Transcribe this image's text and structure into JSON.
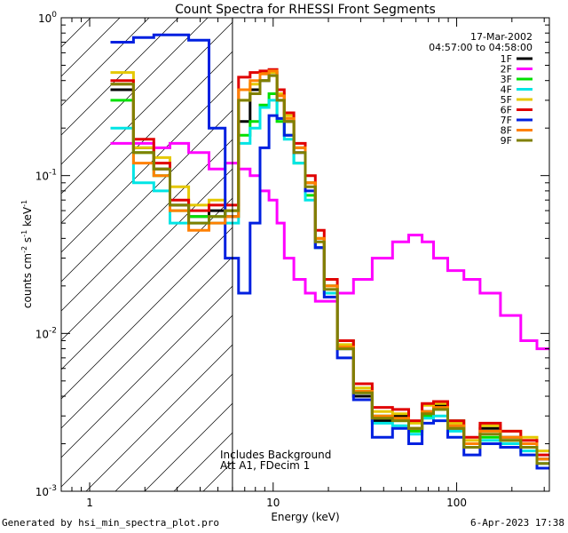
{
  "chart_data": {
    "type": "line",
    "title": "Count Spectra for RHESSI Front Segments",
    "xlabel": "Energy (keV)",
    "ylabel_main": "counts cm",
    "ylabel_parts": [
      "-2",
      " s",
      "-1",
      " keV",
      "-1"
    ],
    "xscale": "log",
    "yscale": "log",
    "xlim": [
      0.7,
      320
    ],
    "ylim": [
      0.001,
      1
    ],
    "x_ticks": [
      {
        "value": 1,
        "label": "1"
      },
      {
        "value": 10,
        "label": "10"
      },
      {
        "value": 100,
        "label": "100"
      }
    ],
    "y_ticks": [
      {
        "value": 0.001,
        "base": "10",
        "exp": "-3"
      },
      {
        "value": 0.01,
        "base": "10",
        "exp": "-2"
      },
      {
        "value": 0.1,
        "base": "10",
        "exp": "-1"
      },
      {
        "value": 1,
        "base": "10",
        "exp": "0"
      }
    ],
    "date": "17-Mar-2002",
    "time_range": "04:57:00 to 04:58:00",
    "annotations": [
      "Includes Background",
      "Att A1, FDecim 1"
    ],
    "excluded_region_max_keV": 6,
    "legend_position": "top-right",
    "x": [
      1.5,
      2,
      2.5,
      3,
      4,
      5,
      6,
      7,
      8,
      9,
      10,
      11,
      12,
      14,
      16,
      18,
      20,
      25,
      30,
      40,
      50,
      60,
      70,
      80,
      100,
      120,
      150,
      200,
      250,
      300
    ],
    "series": [
      {
        "name": "1F",
        "color": "#000000",
        "values": [
          0.35,
          0.15,
          0.11,
          0.065,
          0.055,
          0.06,
          0.055,
          0.22,
          0.35,
          0.4,
          0.45,
          0.3,
          0.22,
          0.15,
          0.09,
          0.035,
          0.02,
          0.008,
          0.004,
          0.0028,
          0.003,
          0.0025,
          0.0032,
          0.0035,
          0.0025,
          0.002,
          0.0025,
          0.0022,
          0.002,
          0.0016
        ]
      },
      {
        "name": "2F",
        "color": "#ff00ff",
        "values": [
          0.16,
          0.16,
          0.15,
          0.16,
          0.14,
          0.11,
          0.12,
          0.11,
          0.1,
          0.08,
          0.07,
          0.05,
          0.03,
          0.022,
          0.018,
          0.016,
          0.016,
          0.018,
          0.022,
          0.03,
          0.038,
          0.042,
          0.038,
          0.03,
          0.025,
          0.022,
          0.018,
          0.013,
          0.009,
          0.008
        ]
      },
      {
        "name": "3F",
        "color": "#00e000",
        "values": [
          0.3,
          0.14,
          0.1,
          0.06,
          0.055,
          0.055,
          0.06,
          0.18,
          0.22,
          0.28,
          0.33,
          0.22,
          0.18,
          0.12,
          0.075,
          0.04,
          0.02,
          0.009,
          0.0045,
          0.003,
          0.0028,
          0.0024,
          0.003,
          0.0033,
          0.0028,
          0.002,
          0.0022,
          0.0021,
          0.0019,
          0.0014
        ]
      },
      {
        "name": "4F",
        "color": "#00e5e5",
        "values": [
          0.2,
          0.09,
          0.08,
          0.05,
          0.05,
          0.05,
          0.05,
          0.16,
          0.2,
          0.27,
          0.3,
          0.23,
          0.17,
          0.12,
          0.07,
          0.035,
          0.018,
          0.008,
          0.0042,
          0.0027,
          0.0026,
          0.0023,
          0.0029,
          0.003,
          0.0024,
          0.0019,
          0.0021,
          0.002,
          0.0018,
          0.0015
        ]
      },
      {
        "name": "5F",
        "color": "#e5c800",
        "values": [
          0.45,
          0.15,
          0.13,
          0.085,
          0.065,
          0.07,
          0.06,
          0.3,
          0.38,
          0.45,
          0.45,
          0.33,
          0.24,
          0.15,
          0.09,
          0.04,
          0.02,
          0.0085,
          0.0045,
          0.0032,
          0.0031,
          0.0027,
          0.0035,
          0.0036,
          0.0027,
          0.0021,
          0.0026,
          0.0024,
          0.0022,
          0.0018
        ]
      },
      {
        "name": "6F",
        "color": "#e00000",
        "values": [
          0.4,
          0.17,
          0.12,
          0.07,
          0.06,
          0.065,
          0.065,
          0.42,
          0.45,
          0.46,
          0.47,
          0.35,
          0.25,
          0.16,
          0.1,
          0.045,
          0.022,
          0.009,
          0.0048,
          0.0034,
          0.0033,
          0.0028,
          0.0036,
          0.0037,
          0.0028,
          0.0022,
          0.0027,
          0.0024,
          0.0021,
          0.0017
        ]
      },
      {
        "name": "7F",
        "color": "#0020e0",
        "values": [
          0.7,
          0.75,
          0.78,
          0.78,
          0.72,
          0.2,
          0.03,
          0.018,
          0.05,
          0.15,
          0.24,
          0.23,
          0.18,
          0.14,
          0.08,
          0.035,
          0.017,
          0.007,
          0.0038,
          0.0022,
          0.0025,
          0.002,
          0.0027,
          0.0028,
          0.0022,
          0.0017,
          0.002,
          0.0019,
          0.0017,
          0.0014
        ]
      },
      {
        "name": "8F",
        "color": "#ff8000",
        "values": [
          0.38,
          0.12,
          0.1,
          0.06,
          0.045,
          0.05,
          0.055,
          0.35,
          0.4,
          0.44,
          0.46,
          0.32,
          0.23,
          0.15,
          0.09,
          0.04,
          0.02,
          0.0082,
          0.0043,
          0.003,
          0.0029,
          0.0025,
          0.0032,
          0.0034,
          0.0026,
          0.002,
          0.0024,
          0.0022,
          0.002,
          0.0016
        ]
      },
      {
        "name": "9F",
        "color": "#808000",
        "values": [
          0.38,
          0.14,
          0.11,
          0.065,
          0.05,
          0.055,
          0.06,
          0.3,
          0.33,
          0.4,
          0.43,
          0.3,
          0.22,
          0.14,
          0.085,
          0.038,
          0.019,
          0.008,
          0.0042,
          0.0029,
          0.0028,
          0.0025,
          0.0031,
          0.0033,
          0.0025,
          0.0019,
          0.0023,
          0.0021,
          0.0019,
          0.0015
        ]
      }
    ]
  },
  "footer": {
    "generated_by": "Generated by hsi_min_spectra_plot.pro",
    "timestamp": "6-Apr-2023 17:38"
  }
}
